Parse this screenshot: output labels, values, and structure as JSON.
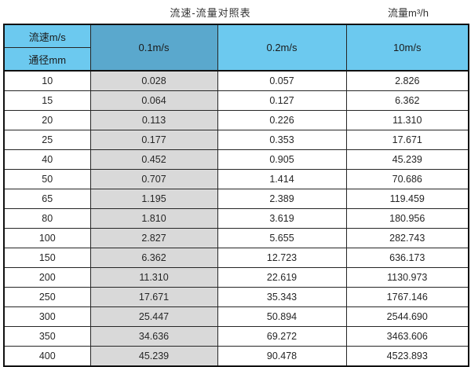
{
  "page": {
    "title": "流速-流量对照表",
    "unit_label": "流量m³/h"
  },
  "colors": {
    "header_light": "#6cc9ef",
    "header_dark": "#5aa8cd",
    "grey_column": "#d9d9d9",
    "border": "#262626",
    "outer_border": "#111111"
  },
  "chart_data": {
    "type": "table",
    "title": "流速-流量对照表",
    "unit_label": "流量m³/h",
    "corner_top": "流速m/s",
    "columns": [
      "通径mm",
      "0.1m/s",
      "0.2m/s",
      "10m/s"
    ],
    "rows": [
      [
        "10",
        "0.028",
        "0.057",
        "2.826"
      ],
      [
        "15",
        "0.064",
        "0.127",
        "6.362"
      ],
      [
        "20",
        "0.113",
        "0.226",
        "11.310"
      ],
      [
        "25",
        "0.177",
        "0.353",
        "17.671"
      ],
      [
        "40",
        "0.452",
        "0.905",
        "45.239"
      ],
      [
        "50",
        "0.707",
        "1.414",
        "70.686"
      ],
      [
        "65",
        "1.195",
        "2.389",
        "119.459"
      ],
      [
        "80",
        "1.810",
        "3.619",
        "180.956"
      ],
      [
        "100",
        "2.827",
        "5.655",
        "282.743"
      ],
      [
        "150",
        "6.362",
        "12.723",
        "636.173"
      ],
      [
        "200",
        "11.310",
        "22.619",
        "1130.973"
      ],
      [
        "250",
        "17.671",
        "35.343",
        "1767.146"
      ],
      [
        "300",
        "25.447",
        "50.894",
        "2544.690"
      ],
      [
        "350",
        "34.636",
        "69.272",
        "3463.606"
      ],
      [
        "400",
        "45.239",
        "90.478",
        "4523.893"
      ]
    ]
  }
}
